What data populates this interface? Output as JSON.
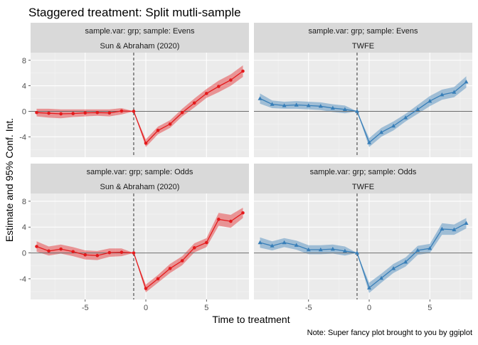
{
  "title": "Staggered treatment: Split mutli-sample",
  "xlabel": "Time to treatment",
  "ylabel": "Estimate and 95% Conf. Int.",
  "caption": "Note: Super fancy plot brought to you by ggiplot",
  "colors": {
    "sa": "#e41a1c",
    "twfe": "#377eb8",
    "panel_bg": "#ebebeb",
    "strip_bg": "#d9d9d9"
  },
  "chart_data": [
    {
      "type": "line",
      "strip_top": "sample.var: grp; sample: Evens",
      "strip_bottom": "Sun & Abraham (2020)",
      "series_key": "sa",
      "marker": "circle",
      "x": [
        -9,
        -8,
        -7,
        -6,
        -5,
        -4,
        -3,
        -2,
        -1,
        0,
        1,
        2,
        3,
        4,
        5,
        6,
        7,
        8
      ],
      "y": [
        -0.2,
        -0.3,
        -0.4,
        -0.35,
        -0.25,
        -0.2,
        -0.25,
        0.05,
        0,
        -5,
        -3,
        -2,
        -0.2,
        1.3,
        2.8,
        3.9,
        4.9,
        6.3
      ],
      "ci_low": [
        -0.8,
        -1.0,
        -1.1,
        -0.9,
        -0.8,
        -0.7,
        -0.8,
        -0.5,
        0,
        -5.6,
        -3.6,
        -2.6,
        -0.8,
        0.6,
        2.1,
        3.0,
        4.0,
        5.4
      ],
      "ci_high": [
        0.4,
        0.4,
        0.3,
        0.3,
        0.3,
        0.3,
        0.3,
        0.5,
        0,
        -4.4,
        -2.4,
        -1.4,
        0.4,
        2.0,
        3.5,
        4.8,
        5.8,
        7.2
      ],
      "xlim": [
        -9.5,
        8.5
      ],
      "ylim": [
        -7.2,
        9.2
      ],
      "yticks": [
        -4,
        0,
        4,
        8
      ],
      "xticks": [
        -5,
        0,
        5
      ],
      "vline": -1,
      "hline": 0
    },
    {
      "type": "line",
      "strip_top": "sample.var: grp; sample: Evens",
      "strip_bottom": "TWFE",
      "series_key": "twfe",
      "marker": "triangle",
      "x": [
        -9,
        -8,
        -7,
        -6,
        -5,
        -4,
        -3,
        -2,
        -1,
        0,
        1,
        2,
        3,
        4,
        5,
        6,
        7,
        8
      ],
      "y": [
        2.0,
        1.1,
        0.9,
        1.0,
        0.9,
        0.8,
        0.5,
        0.3,
        0,
        -4.9,
        -3.3,
        -2.3,
        -1.0,
        0.3,
        1.6,
        2.6,
        3.0,
        4.6
      ],
      "ci_low": [
        1.2,
        0.5,
        0.4,
        0.4,
        0.3,
        0.2,
        -0.1,
        -0.3,
        0,
        -5.6,
        -4.0,
        -3.0,
        -1.6,
        -0.4,
        0.8,
        1.8,
        2.2,
        3.7
      ],
      "ci_high": [
        2.8,
        1.7,
        1.5,
        1.6,
        1.5,
        1.4,
        1.1,
        0.9,
        0,
        -4.2,
        -2.6,
        -1.6,
        -0.4,
        1.0,
        2.4,
        3.4,
        3.8,
        5.5
      ],
      "xlim": [
        -9.5,
        8.5
      ],
      "ylim": [
        -7.2,
        9.2
      ],
      "yticks": [
        -4,
        0,
        4,
        8
      ],
      "xticks": [
        -5,
        0,
        5
      ],
      "vline": -1,
      "hline": 0
    },
    {
      "type": "line",
      "strip_top": "sample.var: grp; sample: Odds",
      "strip_bottom": "Sun & Abraham (2020)",
      "series_key": "sa",
      "marker": "circle",
      "x": [
        -9,
        -8,
        -7,
        -6,
        -5,
        -4,
        -3,
        -2,
        -1,
        0,
        1,
        2,
        3,
        4,
        5,
        6,
        7,
        8
      ],
      "y": [
        1.0,
        0.3,
        0.6,
        0.2,
        -0.3,
        -0.4,
        0.05,
        0.1,
        0,
        -5.5,
        -4.0,
        -2.4,
        -1.2,
        0.8,
        1.6,
        5.2,
        4.9,
        6.2
      ],
      "ci_low": [
        0.2,
        -0.4,
        -0.1,
        -0.5,
        -1.0,
        -1.1,
        -0.6,
        -0.5,
        0,
        -6.1,
        -4.6,
        -3.1,
        -1.9,
        0.1,
        0.9,
        4.2,
        3.9,
        5.4
      ],
      "ci_high": [
        1.8,
        1.0,
        1.3,
        0.9,
        0.4,
        0.3,
        0.7,
        0.7,
        0,
        -4.9,
        -3.4,
        -1.7,
        -0.5,
        1.5,
        2.3,
        6.2,
        5.9,
        7.0
      ],
      "xlim": [
        -9.5,
        8.5
      ],
      "ylim": [
        -7.2,
        9.2
      ],
      "yticks": [
        -4,
        0,
        4,
        8
      ],
      "xticks": [
        -5,
        0,
        5
      ],
      "vline": -1,
      "hline": 0
    },
    {
      "type": "line",
      "strip_top": "sample.var: grp; sample: Odds",
      "strip_bottom": "TWFE",
      "series_key": "twfe",
      "marker": "triangle",
      "x": [
        -9,
        -8,
        -7,
        -6,
        -5,
        -4,
        -3,
        -2,
        -1,
        0,
        1,
        2,
        3,
        4,
        5,
        6,
        7,
        8
      ],
      "y": [
        1.6,
        1.1,
        1.6,
        1.2,
        0.5,
        0.5,
        0.6,
        0.3,
        0,
        -5.4,
        -3.9,
        -2.4,
        -1.4,
        0.4,
        0.7,
        3.7,
        3.6,
        4.6
      ],
      "ci_low": [
        0.8,
        0.4,
        0.9,
        0.5,
        -0.2,
        -0.2,
        -0.1,
        -0.4,
        0,
        -6.2,
        -4.6,
        -3.1,
        -2.1,
        -0.3,
        0.0,
        2.8,
        2.8,
        3.8
      ],
      "ci_high": [
        2.4,
        1.8,
        2.3,
        1.9,
        1.2,
        1.2,
        1.3,
        1.0,
        0,
        -4.6,
        -3.2,
        -1.7,
        -0.7,
        1.1,
        1.4,
        4.6,
        4.4,
        5.4
      ],
      "xlim": [
        -9.5,
        8.5
      ],
      "ylim": [
        -7.2,
        9.2
      ],
      "yticks": [
        -4,
        0,
        4,
        8
      ],
      "xticks": [
        -5,
        0,
        5
      ],
      "vline": -1,
      "hline": 0
    }
  ]
}
